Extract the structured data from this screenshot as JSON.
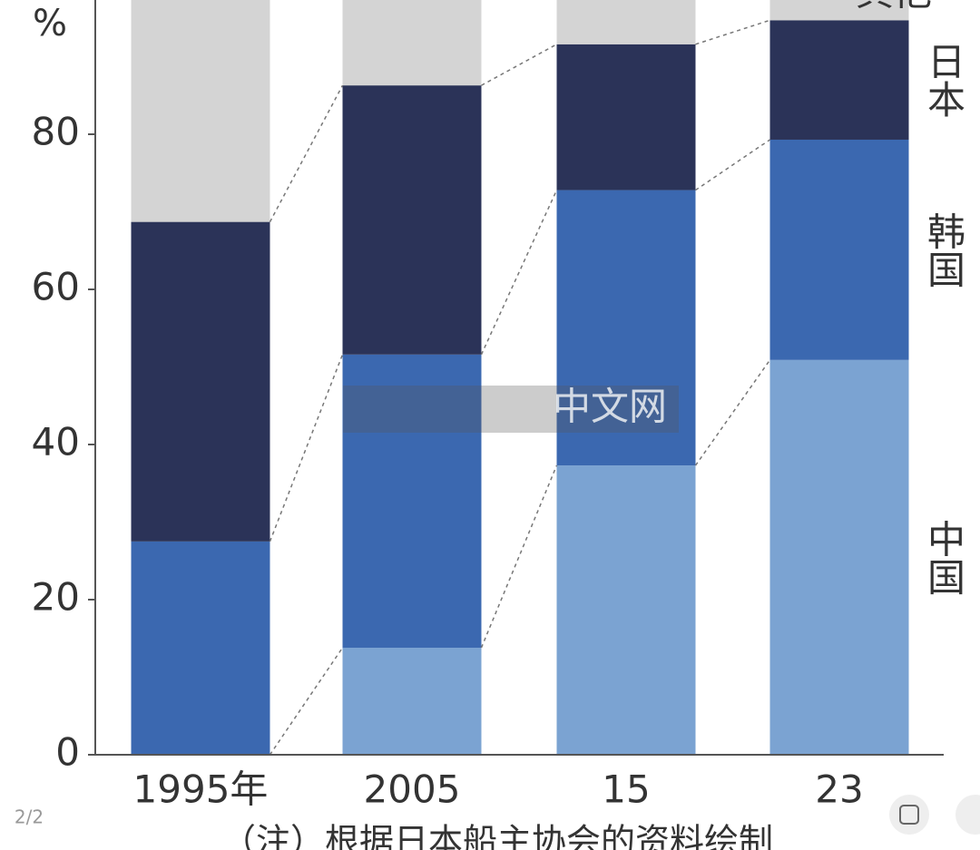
{
  "chart_data": {
    "type": "stacked_bar",
    "y_label": "%",
    "categories": [
      "1995年",
      "2005",
      "15",
      "23"
    ],
    "series": [
      {
        "name": "中国",
        "color": "#7ba3d2",
        "values": [
          0,
          13.8,
          37.3,
          50.9
        ]
      },
      {
        "name": "韩国",
        "color": "#3b68b0",
        "values": [
          27.5,
          37.8,
          35.5,
          28.4
        ]
      },
      {
        "name": "日本",
        "color": "#2b3358",
        "values": [
          41.2,
          34.7,
          18.8,
          15.4
        ]
      },
      {
        "name": "其他",
        "color": "#d4d4d4",
        "values": [
          31.3,
          13.7,
          8.4,
          5.3
        ]
      }
    ],
    "ylim": [
      0,
      100
    ],
    "yticks": [
      0,
      20,
      40,
      60,
      80
    ],
    "note": "（注）根据日本船主协会的资料绘制",
    "watermark": "中文网",
    "page_indicator": "2/2"
  }
}
